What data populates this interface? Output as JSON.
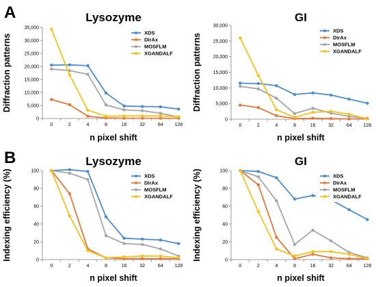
{
  "panels": [
    "A",
    "B"
  ],
  "chart_data": [
    {
      "type": "line",
      "panel": "A",
      "title": "Lysozyme",
      "xlabel": "n pixel shift",
      "ylabel": "Diffraction patterns",
      "categories": [
        "0",
        "2",
        "4",
        "8",
        "16",
        "32",
        "64",
        "128"
      ],
      "ylim": [
        0,
        35000
      ],
      "yticks": [
        0,
        5000,
        10000,
        15000,
        20000,
        25000,
        30000,
        35000
      ],
      "ytick_labels": [
        "0",
        "5,000",
        "10,000",
        "15,000",
        "20,000",
        "25,000",
        "30,000",
        "35,000"
      ],
      "legend_position": "top-right",
      "grid": false,
      "series": [
        {
          "name": "XDS",
          "color": "#4a8bd4",
          "values": [
            20500,
            20600,
            20300,
            9800,
            4800,
            4600,
            4500,
            3600
          ]
        },
        {
          "name": "DirAx",
          "color": "#e87636",
          "values": [
            7300,
            5300,
            900,
            200,
            100,
            100,
            100,
            100
          ]
        },
        {
          "name": "MOSFLM",
          "color": "#a5a5a5",
          "values": [
            19000,
            18400,
            17000,
            5200,
            3300,
            3000,
            2000,
            600
          ]
        },
        {
          "name": "XGANDALF",
          "color": "#f7c11c",
          "values": [
            34300,
            16700,
            3200,
            900,
            1000,
            1000,
            1000,
            700
          ]
        }
      ]
    },
    {
      "type": "line",
      "panel": "A",
      "title": "GI",
      "xlabel": "n pixel shift",
      "ylabel": "Diffraction patterns",
      "categories": [
        "0",
        "2",
        "4",
        "8",
        "16",
        "32",
        "64",
        "128"
      ],
      "ylim": [
        0,
        30000
      ],
      "yticks": [
        0,
        5000,
        10000,
        15000,
        20000,
        25000,
        30000
      ],
      "ytick_labels": [
        "0",
        "5,000",
        "10,000",
        "15,000",
        "20,000",
        "25,000",
        "30,000"
      ],
      "legend_position": "top-right",
      "grid": false,
      "series": [
        {
          "name": "XDS",
          "color": "#4a8bd4",
          "values": [
            11500,
            11400,
            10700,
            7900,
            8400,
            7700,
            6400,
            5100
          ]
        },
        {
          "name": "DirAx",
          "color": "#e87636",
          "values": [
            4500,
            3700,
            1100,
            200,
            300,
            200,
            100,
            100
          ]
        },
        {
          "name": "MOSFLM",
          "color": "#a5a5a5",
          "values": [
            10500,
            9700,
            6700,
            1800,
            3500,
            1900,
            900,
            300
          ]
        },
        {
          "name": "XGANDALF",
          "color": "#f7c11c",
          "values": [
            26000,
            14000,
            3000,
            600,
            2200,
            2500,
            1600,
            100
          ]
        }
      ]
    },
    {
      "type": "line",
      "panel": "B",
      "title": "Lysozyme",
      "xlabel": "n pixel shift",
      "ylabel": "Indexing efficiency (%)",
      "categories": [
        "0",
        "2",
        "4",
        "8",
        "16",
        "32",
        "64",
        "128"
      ],
      "ylim": [
        0,
        100
      ],
      "yticks": [
        0,
        20,
        40,
        60,
        80,
        100
      ],
      "ytick_labels": [
        "0",
        "20",
        "40",
        "60",
        "80",
        "100"
      ],
      "legend_position": "top-right",
      "grid": false,
      "series": [
        {
          "name": "XDS",
          "color": "#4a8bd4",
          "values": [
            100,
            101,
            99,
            48,
            24,
            23,
            22,
            18
          ]
        },
        {
          "name": "DirAx",
          "color": "#e87636",
          "values": [
            100,
            74,
            12,
            2,
            1,
            1,
            1,
            1
          ]
        },
        {
          "name": "MOSFLM",
          "color": "#a5a5a5",
          "values": [
            100,
            97,
            90,
            27,
            18,
            17,
            12,
            4
          ]
        },
        {
          "name": "XGANDALF",
          "color": "#f7c11c",
          "values": [
            100,
            49,
            10,
            2,
            3,
            4,
            4,
            2
          ]
        }
      ]
    },
    {
      "type": "line",
      "panel": "B",
      "title": "GI",
      "xlabel": "n pixel shift",
      "ylabel": "Indexing efficiency (%)",
      "categories": [
        "0",
        "2",
        "4",
        "8",
        "16",
        "32",
        "64",
        "128"
      ],
      "ylim": [
        0,
        100
      ],
      "yticks": [
        0,
        20,
        40,
        60,
        80,
        100
      ],
      "ytick_labels": [
        "0",
        "20",
        "40",
        "60",
        "80",
        "100"
      ],
      "legend_position": "top-right",
      "grid": false,
      "series": [
        {
          "name": "XDS",
          "color": "#4a8bd4",
          "values": [
            100,
            99,
            92,
            68,
            72,
            67,
            56,
            45
          ]
        },
        {
          "name": "DirAx",
          "color": "#e87636",
          "values": [
            100,
            84,
            25,
            1,
            6,
            2,
            1,
            1
          ]
        },
        {
          "name": "MOSFLM",
          "color": "#a5a5a5",
          "values": [
            100,
            93,
            66,
            17,
            33,
            21,
            8,
            2
          ]
        },
        {
          "name": "XGANDALF",
          "color": "#f7c11c",
          "values": [
            100,
            54,
            12,
            4,
            9,
            9,
            6,
            1
          ]
        }
      ]
    }
  ]
}
